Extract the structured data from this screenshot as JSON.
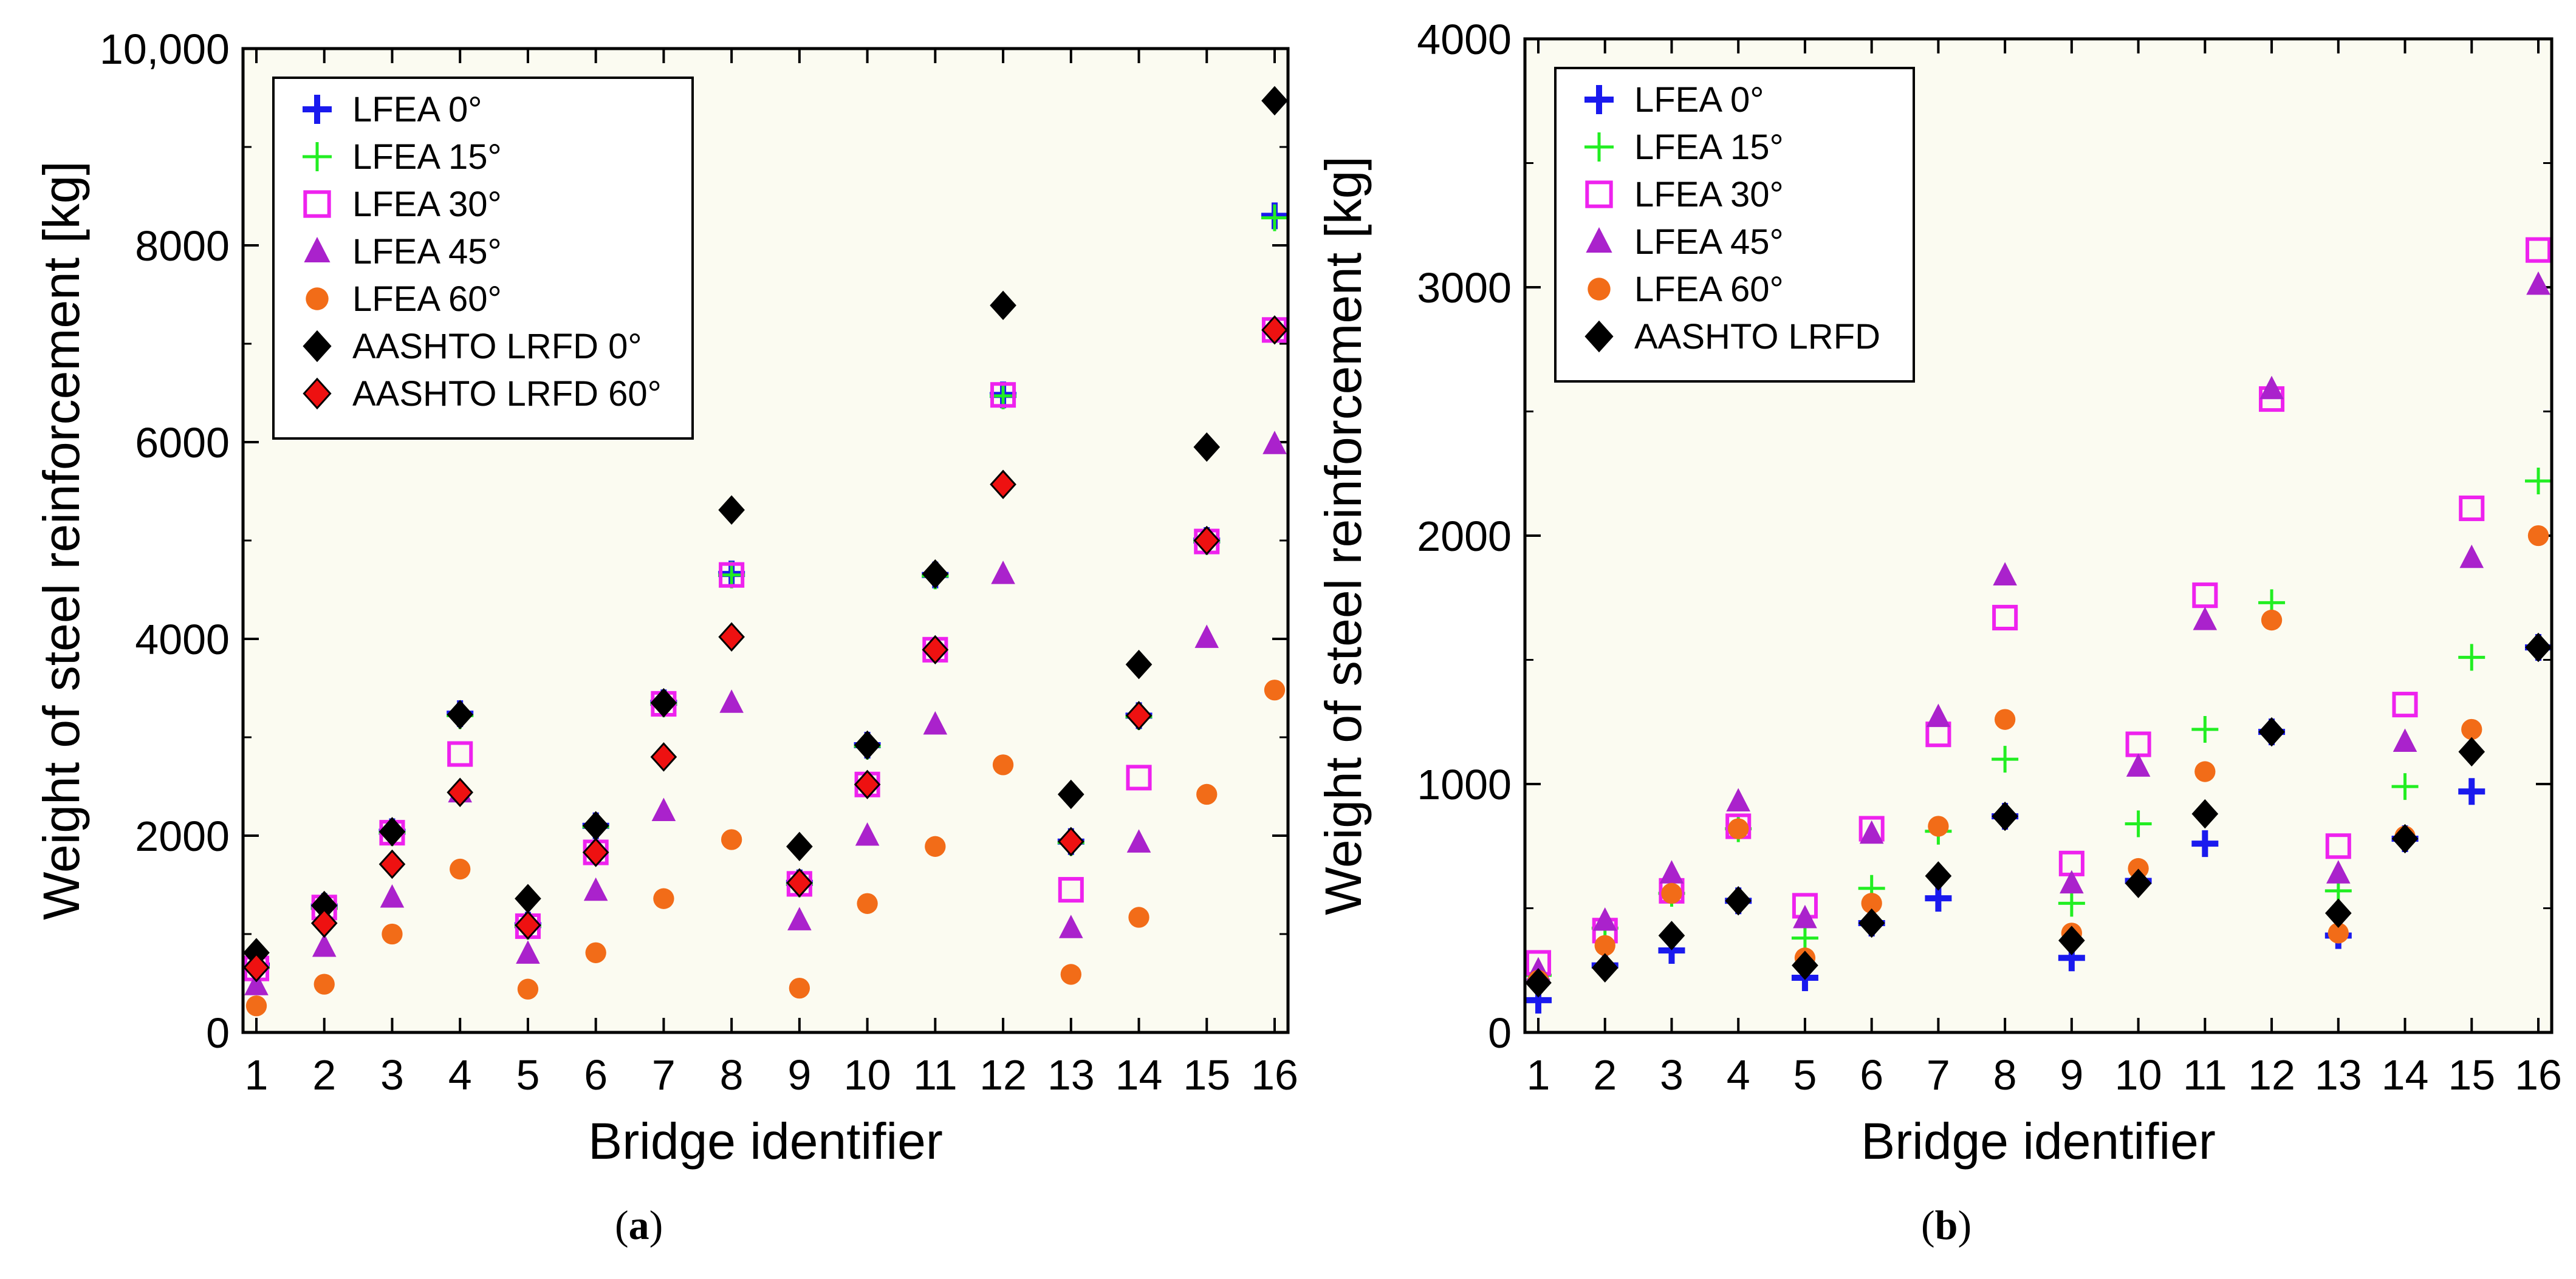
{
  "chart_data": [
    {
      "panel": "a",
      "caption_label": "a",
      "type": "scatter",
      "xlabel": "Bridge identifier",
      "ylabel": "Weight of steel reinforcement [kg]",
      "xlim": [
        1,
        16
      ],
      "ylim": [
        0,
        10000
      ],
      "x_ticks": [
        "1",
        "2",
        "3",
        "4",
        "5",
        "6",
        "7",
        "8",
        "9",
        "10",
        "11",
        "12",
        "13",
        "14",
        "15",
        "16"
      ],
      "y_tick_values": [
        0,
        2000,
        4000,
        6000,
        8000,
        10000
      ],
      "y_tick_labels": [
        "0",
        "2000",
        "4000",
        "6000",
        "8000",
        "10,000"
      ],
      "legend_position": "top-left",
      "series": [
        {
          "name": "LFEA 0°",
          "marker": "plus-bold",
          "color": "#1a1aee",
          "x": [
            1,
            2,
            3,
            4,
            5,
            6,
            7,
            8,
            9,
            10,
            11,
            12,
            13,
            14,
            15,
            16
          ],
          "y": [
            680,
            1280,
            2040,
            3240,
            1090,
            2100,
            3350,
            4660,
            1520,
            2920,
            4650,
            6480,
            1940,
            3220,
            5000,
            8300
          ]
        },
        {
          "name": "LFEA 15°",
          "marker": "plus",
          "color": "#22ee22",
          "x": [
            1,
            2,
            3,
            4,
            5,
            6,
            7,
            8,
            9,
            10,
            11,
            12,
            13,
            14,
            15,
            16
          ],
          "y": [
            660,
            1260,
            2030,
            3220,
            1080,
            2090,
            3340,
            4650,
            1510,
            2910,
            4640,
            6470,
            1930,
            3210,
            4990,
            8280
          ]
        },
        {
          "name": "LFEA 30°",
          "marker": "square",
          "color": "#ee22ee",
          "x": [
            1,
            2,
            3,
            4,
            5,
            6,
            7,
            8,
            9,
            10,
            11,
            12,
            13,
            14,
            15,
            16
          ],
          "y": [
            650,
            1270,
            2030,
            2830,
            1080,
            1830,
            3340,
            4650,
            1510,
            2520,
            3890,
            6480,
            1450,
            2590,
            4990,
            7140
          ]
        },
        {
          "name": "LFEA 45°",
          "marker": "triangle",
          "color": "#aa22cc",
          "x": [
            1,
            2,
            3,
            4,
            5,
            6,
            7,
            8,
            9,
            10,
            11,
            12,
            13,
            14,
            15,
            16
          ],
          "y": [
            480,
            870,
            1370,
            2440,
            800,
            1440,
            2250,
            3350,
            1140,
            2000,
            3130,
            4660,
            1060,
            1930,
            4010,
            5980
          ]
        },
        {
          "name": "LFEA 60°",
          "marker": "circle",
          "color": "#f26c18",
          "x": [
            1,
            2,
            3,
            4,
            5,
            6,
            7,
            8,
            9,
            10,
            11,
            12,
            13,
            14,
            15,
            16
          ],
          "y": [
            270,
            490,
            1000,
            1660,
            440,
            810,
            1360,
            1960,
            450,
            1310,
            1890,
            2720,
            590,
            1170,
            2420,
            3480
          ]
        },
        {
          "name": "AASHTO LRFD 0°",
          "marker": "diamond",
          "color": "#000000",
          "x": [
            1,
            2,
            3,
            4,
            5,
            6,
            7,
            8,
            9,
            10,
            11,
            12,
            13,
            14,
            15,
            16
          ],
          "y": [
            810,
            1290,
            2040,
            3230,
            1360,
            2100,
            3350,
            5310,
            1890,
            2920,
            4660,
            7390,
            2420,
            3740,
            5950,
            9470
          ]
        },
        {
          "name": "AASHTO LRFD 60°",
          "marker": "diamond",
          "color": "#ee1111",
          "x": [
            1,
            2,
            3,
            4,
            5,
            6,
            7,
            8,
            9,
            10,
            11,
            12,
            13,
            14,
            15,
            16
          ],
          "y": [
            660,
            1110,
            1710,
            2440,
            1090,
            1830,
            2800,
            4020,
            1520,
            2520,
            3890,
            5570,
            1940,
            3220,
            5000,
            7140
          ]
        }
      ]
    },
    {
      "panel": "b",
      "caption_label": "b",
      "type": "scatter",
      "xlabel": "Bridge identifier",
      "ylabel": "Weight of steel reinforcement [kg]",
      "xlim": [
        1,
        16
      ],
      "ylim": [
        0,
        4000
      ],
      "x_ticks": [
        "1",
        "2",
        "3",
        "4",
        "5",
        "6",
        "7",
        "8",
        "9",
        "10",
        "11",
        "12",
        "13",
        "14",
        "15",
        "16"
      ],
      "y_tick_values": [
        0,
        1000,
        2000,
        3000,
        4000
      ],
      "y_tick_labels": [
        "0",
        "1000",
        "2000",
        "3000",
        "4000"
      ],
      "legend_position": "top-left",
      "series": [
        {
          "name": "LFEA 0°",
          "marker": "plus-bold",
          "color": "#1a1aee",
          "x": [
            1,
            2,
            3,
            4,
            5,
            6,
            7,
            8,
            9,
            10,
            11,
            12,
            13,
            14,
            15,
            16
          ],
          "y": [
            130,
            270,
            330,
            530,
            220,
            440,
            540,
            870,
            300,
            610,
            760,
            1210,
            390,
            780,
            970,
            1550
          ]
        },
        {
          "name": "LFEA 15°",
          "marker": "plus",
          "color": "#22ee22",
          "x": [
            1,
            2,
            3,
            4,
            5,
            6,
            7,
            8,
            9,
            10,
            11,
            12,
            13,
            14,
            15,
            16
          ],
          "y": [
            230,
            420,
            560,
            820,
            380,
            580,
            810,
            1100,
            520,
            840,
            1220,
            1730,
            570,
            990,
            1510,
            2220
          ]
        },
        {
          "name": "LFEA 30°",
          "marker": "square",
          "color": "#ee22ee",
          "x": [
            1,
            2,
            3,
            4,
            5,
            6,
            7,
            8,
            9,
            10,
            11,
            12,
            13,
            14,
            15,
            16
          ],
          "y": [
            280,
            410,
            570,
            830,
            510,
            820,
            1200,
            1670,
            680,
            1160,
            1760,
            2550,
            750,
            1320,
            2110,
            3150
          ]
        },
        {
          "name": "LFEA 45°",
          "marker": "triangle",
          "color": "#aa22cc",
          "x": [
            1,
            2,
            3,
            4,
            5,
            6,
            7,
            8,
            9,
            10,
            11,
            12,
            13,
            14,
            15,
            16
          ],
          "y": [
            250,
            450,
            640,
            930,
            460,
            800,
            1270,
            1840,
            600,
            1070,
            1660,
            2590,
            640,
            1170,
            1910,
            3010
          ]
        },
        {
          "name": "LFEA 60°",
          "marker": "circle",
          "color": "#f26c18",
          "x": [
            1,
            2,
            3,
            4,
            5,
            6,
            7,
            8,
            9,
            10,
            11,
            12,
            13,
            14,
            15,
            16
          ],
          "y": [
            210,
            350,
            560,
            820,
            300,
            520,
            830,
            1260,
            400,
            660,
            1050,
            1660,
            400,
            790,
            1220,
            2000
          ]
        },
        {
          "name": "AASHTO LRFD",
          "marker": "diamond",
          "color": "#000000",
          "x": [
            1,
            2,
            3,
            4,
            5,
            6,
            7,
            8,
            9,
            10,
            11,
            12,
            13,
            14,
            15,
            16
          ],
          "y": [
            200,
            260,
            390,
            530,
            270,
            440,
            630,
            870,
            370,
            600,
            880,
            1210,
            480,
            780,
            1130,
            1550
          ]
        }
      ]
    }
  ]
}
